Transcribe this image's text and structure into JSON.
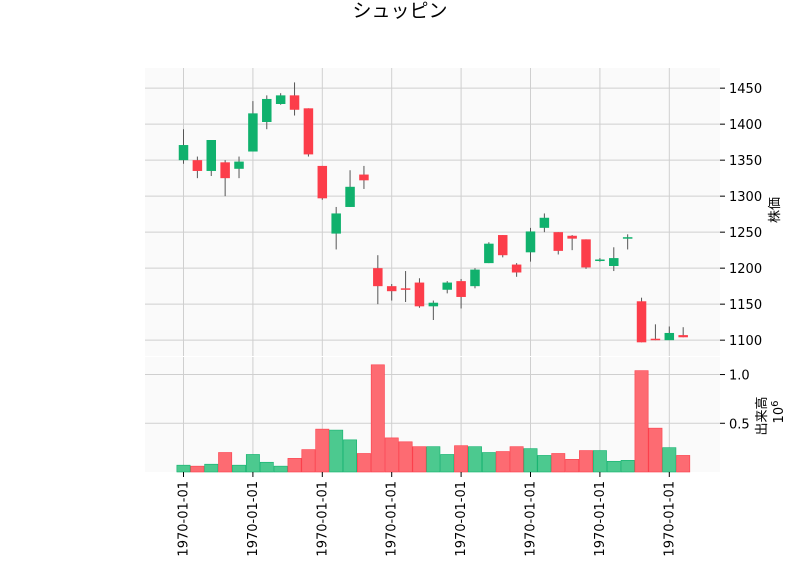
{
  "chart_data": {
    "type": "candlestick",
    "title": "シュッピン",
    "colors": {
      "up": "#10b16d",
      "down": "#fc3d4a",
      "up_volume": "#4cc98f",
      "down_volume": "#fd6b72",
      "background": "#fafafa",
      "grid": "#cfcfcf"
    },
    "grid": true,
    "price_panel": {
      "ylabel": "株価",
      "ylim": [
        1078,
        1478
      ],
      "yticks": [
        1100,
        1150,
        1200,
        1250,
        1300,
        1350,
        1400,
        1450
      ],
      "ytick_labels": [
        "1100",
        "1150",
        "1200",
        "1250",
        "1300",
        "1350",
        "1400",
        "1450"
      ]
    },
    "volume_panel": {
      "ylabel": "出来高",
      "exponent_label": "10",
      "exponent_power": "6",
      "ylim": [
        0,
        1.18
      ],
      "yticks": [
        0.5,
        1.0
      ],
      "ytick_labels": [
        "0.5",
        "1.0"
      ]
    },
    "x_tick_label": "1970-01-01",
    "x_tick_every": 5,
    "candles": [
      {
        "open": 1350,
        "high": 1393,
        "low": 1345,
        "close": 1371,
        "volume": 0.07
      },
      {
        "open": 1350,
        "high": 1355,
        "low": 1325,
        "close": 1335,
        "volume": 0.06
      },
      {
        "open": 1335,
        "high": 1378,
        "low": 1328,
        "close": 1378,
        "volume": 0.08
      },
      {
        "open": 1347,
        "high": 1350,
        "low": 1300,
        "close": 1325,
        "volume": 0.2
      },
      {
        "open": 1338,
        "high": 1355,
        "low": 1325,
        "close": 1348,
        "volume": 0.07
      },
      {
        "open": 1362,
        "high": 1432,
        "low": 1362,
        "close": 1415,
        "volume": 0.18
      },
      {
        "open": 1403,
        "high": 1440,
        "low": 1393,
        "close": 1435,
        "volume": 0.1
      },
      {
        "open": 1428,
        "high": 1443,
        "low": 1427,
        "close": 1440,
        "volume": 0.06
      },
      {
        "open": 1440,
        "high": 1458,
        "low": 1412,
        "close": 1420,
        "volume": 0.14
      },
      {
        "open": 1422,
        "high": 1422,
        "low": 1355,
        "close": 1358,
        "volume": 0.23
      },
      {
        "open": 1342,
        "high": 1342,
        "low": 1295,
        "close": 1297,
        "volume": 0.44
      },
      {
        "open": 1248,
        "high": 1285,
        "low": 1226,
        "close": 1276,
        "volume": 0.43
      },
      {
        "open": 1285,
        "high": 1336,
        "low": 1285,
        "close": 1313,
        "volume": 0.33
      },
      {
        "open": 1330,
        "high": 1342,
        "low": 1310,
        "close": 1322,
        "volume": 0.19
      },
      {
        "open": 1200,
        "high": 1218,
        "low": 1150,
        "close": 1175,
        "volume": 1.1
      },
      {
        "open": 1175,
        "high": 1178,
        "low": 1155,
        "close": 1168,
        "volume": 0.35
      },
      {
        "open": 1172,
        "high": 1196,
        "low": 1153,
        "close": 1171,
        "volume": 0.31
      },
      {
        "open": 1180,
        "high": 1186,
        "low": 1145,
        "close": 1147,
        "volume": 0.26
      },
      {
        "open": 1147,
        "high": 1155,
        "low": 1128,
        "close": 1152,
        "volume": 0.26
      },
      {
        "open": 1170,
        "high": 1182,
        "low": 1165,
        "close": 1180,
        "volume": 0.18
      },
      {
        "open": 1182,
        "high": 1185,
        "low": 1144,
        "close": 1160,
        "volume": 0.27
      },
      {
        "open": 1175,
        "high": 1200,
        "low": 1172,
        "close": 1198,
        "volume": 0.26
      },
      {
        "open": 1207,
        "high": 1236,
        "low": 1207,
        "close": 1234,
        "volume": 0.2
      },
      {
        "open": 1246,
        "high": 1246,
        "low": 1215,
        "close": 1218,
        "volume": 0.21
      },
      {
        "open": 1205,
        "high": 1207,
        "low": 1188,
        "close": 1194,
        "volume": 0.26
      },
      {
        "open": 1222,
        "high": 1256,
        "low": 1209,
        "close": 1251,
        "volume": 0.24
      },
      {
        "open": 1256,
        "high": 1276,
        "low": 1250,
        "close": 1270,
        "volume": 0.17
      },
      {
        "open": 1250,
        "high": 1250,
        "low": 1219,
        "close": 1224,
        "volume": 0.19
      },
      {
        "open": 1245,
        "high": 1246,
        "low": 1225,
        "close": 1241,
        "volume": 0.13
      },
      {
        "open": 1240,
        "high": 1240,
        "low": 1199,
        "close": 1201,
        "volume": 0.22
      },
      {
        "open": 1211,
        "high": 1214,
        "low": 1209,
        "close": 1212,
        "volume": 0.22
      },
      {
        "open": 1203,
        "high": 1229,
        "low": 1196,
        "close": 1214,
        "volume": 0.11
      },
      {
        "open": 1243,
        "high": 1247,
        "low": 1226,
        "close": 1243,
        "volume": 0.12
      },
      {
        "open": 1154,
        "high": 1159,
        "low": 1097,
        "close": 1097,
        "volume": 1.04
      },
      {
        "open": 1102,
        "high": 1122,
        "low": 1100,
        "close": 1101,
        "volume": 0.45
      },
      {
        "open": 1100,
        "high": 1119,
        "low": 1100,
        "close": 1110,
        "volume": 0.25
      },
      {
        "open": 1107,
        "high": 1118,
        "low": 1104,
        "close": 1104,
        "volume": 0.17
      }
    ]
  }
}
